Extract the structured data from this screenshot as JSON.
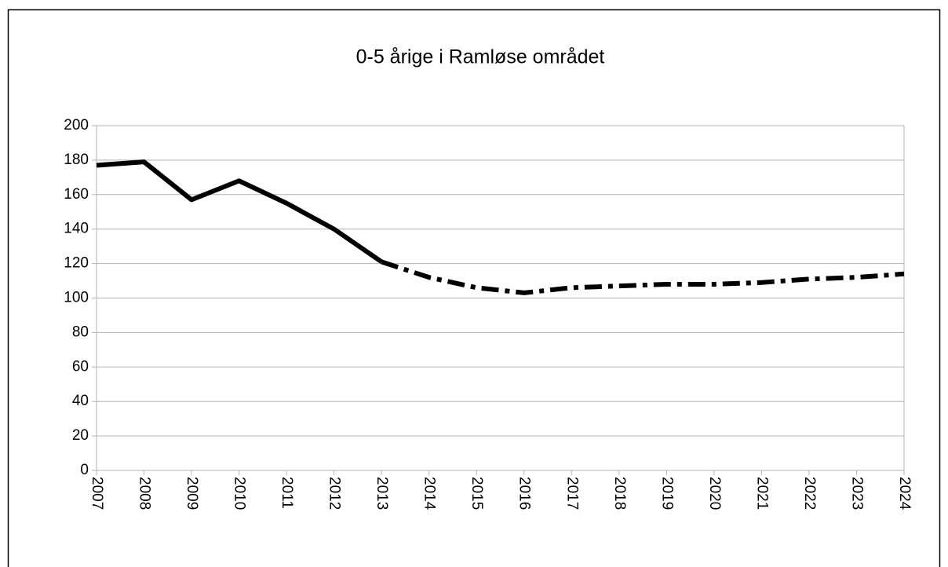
{
  "chart_data": {
    "type": "line",
    "title": "0-5 årige i Ramløse området",
    "x": [
      2007,
      2008,
      2009,
      2010,
      2011,
      2012,
      2013,
      2014,
      2015,
      2016,
      2017,
      2018,
      2019,
      2020,
      2021,
      2022,
      2023,
      2024
    ],
    "series": [
      {
        "color": "#000000",
        "line_style": "solid",
        "values": [
          177,
          179,
          157,
          168,
          155,
          140,
          121,
          null,
          null,
          null,
          null,
          null,
          null,
          null,
          null,
          null,
          null,
          null
        ]
      },
      {
        "color": "#000000",
        "line_style": "dashdot",
        "values": [
          null,
          null,
          null,
          null,
          null,
          null,
          121,
          112,
          106,
          103,
          106,
          107,
          108,
          108,
          109,
          111,
          112,
          114
        ]
      }
    ],
    "xlim": [
      2007,
      2024
    ],
    "xticks": [
      2007,
      2008,
      2009,
      2010,
      2011,
      2012,
      2013,
      2014,
      2015,
      2016,
      2017,
      2018,
      2019,
      2020,
      2021,
      2022,
      2023,
      2024
    ],
    "ylim": [
      0,
      200
    ],
    "yticks": [
      0,
      20,
      40,
      60,
      80,
      100,
      120,
      140,
      160,
      180,
      200
    ],
    "grid": true
  }
}
